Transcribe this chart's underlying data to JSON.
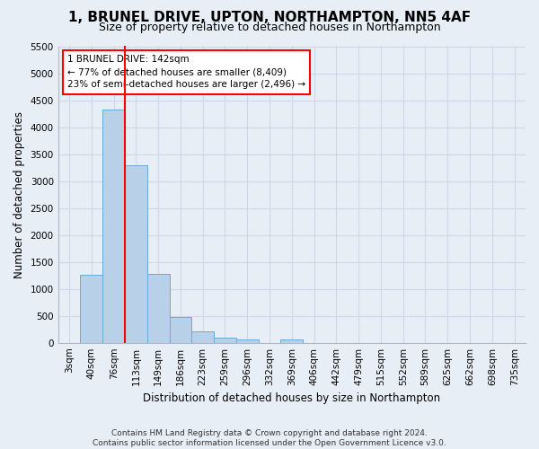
{
  "title": "1, BRUNEL DRIVE, UPTON, NORTHAMPTON, NN5 4AF",
  "subtitle": "Size of property relative to detached houses in Northampton",
  "xlabel": "Distribution of detached houses by size in Northampton",
  "ylabel": "Number of detached properties",
  "footer_line1": "Contains HM Land Registry data © Crown copyright and database right 2024.",
  "footer_line2": "Contains public sector information licensed under the Open Government Licence v3.0.",
  "categories": [
    "3sqm",
    "40sqm",
    "76sqm",
    "113sqm",
    "149sqm",
    "186sqm",
    "223sqm",
    "259sqm",
    "296sqm",
    "332sqm",
    "369sqm",
    "406sqm",
    "442sqm",
    "479sqm",
    "515sqm",
    "552sqm",
    "589sqm",
    "625sqm",
    "662sqm",
    "698sqm",
    "735sqm"
  ],
  "bar_values": [
    0,
    1260,
    4320,
    3300,
    1280,
    480,
    210,
    90,
    60,
    0,
    55,
    0,
    0,
    0,
    0,
    0,
    0,
    0,
    0,
    0,
    0
  ],
  "bar_color": "#b8d0e8",
  "bar_edge_color": "#6aaad4",
  "ylim": [
    0,
    5500
  ],
  "yticks": [
    0,
    500,
    1000,
    1500,
    2000,
    2500,
    3000,
    3500,
    4000,
    4500,
    5000,
    5500
  ],
  "property_line_index": 3,
  "property_line_color": "red",
  "annotation_line1": "1 BRUNEL DRIVE: 142sqm",
  "annotation_line2": "← 77% of detached houses are smaller (8,409)",
  "annotation_line3": "23% of semi-detached houses are larger (2,496) →",
  "background_color": "#e8eef6",
  "grid_color": "#d0d8e8",
  "title_fontsize": 11,
  "subtitle_fontsize": 9,
  "axis_label_fontsize": 8.5,
  "tick_fontsize": 7.5,
  "footer_fontsize": 6.5
}
